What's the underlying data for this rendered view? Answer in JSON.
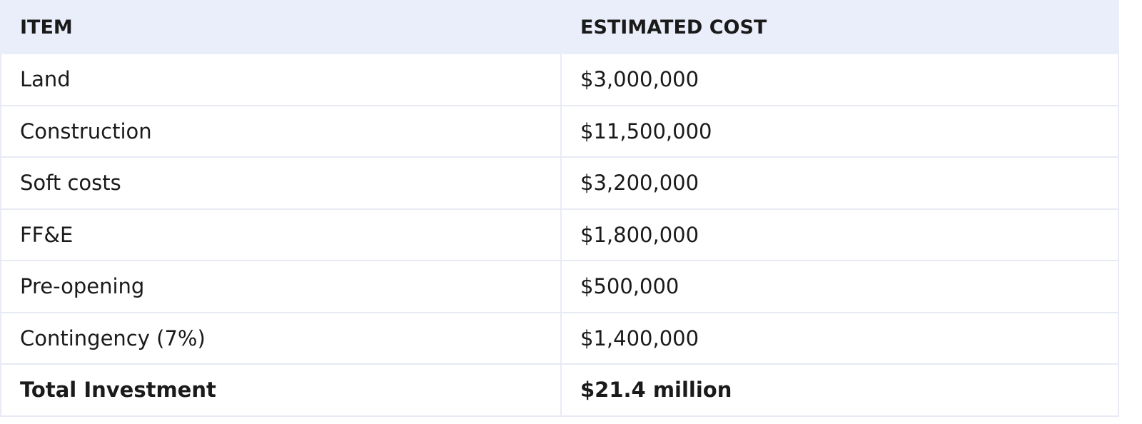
{
  "table": {
    "columns": [
      "ITEM",
      "ESTIMATED COST"
    ],
    "rows": [
      [
        "Land",
        "$3,000,000"
      ],
      [
        "Construction",
        "$11,500,000"
      ],
      [
        "Soft costs",
        "$3,200,000"
      ],
      [
        "FF&E",
        "$1,800,000"
      ],
      [
        "Pre-opening",
        "$500,000"
      ],
      [
        "Contingency (7%)",
        "$1,400,000"
      ]
    ],
    "total": [
      "Total Investment",
      "$21.4 million"
    ]
  }
}
